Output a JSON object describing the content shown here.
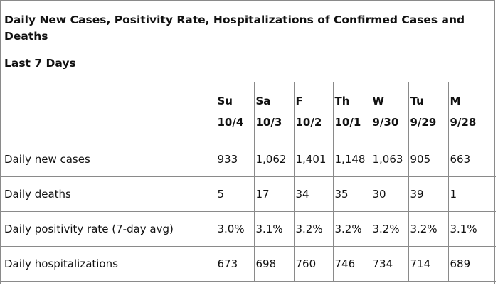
{
  "title": "Daily New Cases, Positivity Rate, Hospitalizations of Confirmed Cases and Deaths",
  "subtitle": "Last 7 Days",
  "columns": [
    {
      "day": "Su",
      "date": "10/4"
    },
    {
      "day": "Sa",
      "date": "10/3"
    },
    {
      "day": "F",
      "date": "10/2"
    },
    {
      "day": "Th",
      "date": "10/1"
    },
    {
      "day": "W",
      "date": "9/30"
    },
    {
      "day": "Tu",
      "date": "9/29"
    },
    {
      "day": "M",
      "date": "9/28"
    }
  ],
  "rows": [
    {
      "label": "Daily new cases",
      "values": [
        "933",
        "1,062",
        "1,401",
        "1,148",
        "1,063",
        "905",
        "663"
      ]
    },
    {
      "label": "Daily deaths",
      "values": [
        "5",
        "17",
        "34",
        "35",
        "30",
        "39",
        "1"
      ]
    },
    {
      "label": "Daily positivity rate (7-day avg)",
      "values": [
        "3.0%",
        "3.1%",
        "3.2%",
        "3.2%",
        "3.2%",
        "3.2%",
        "3.1%"
      ]
    },
    {
      "label": "Daily hospitalizations",
      "values": [
        "673",
        "698",
        "760",
        "746",
        "734",
        "714",
        "689"
      ]
    }
  ],
  "chart_data": {
    "type": "table",
    "title": "Daily New Cases, Positivity Rate, Hospitalizations of Confirmed Cases and Deaths",
    "subtitle": "Last 7 Days",
    "categories": [
      "Su 10/4",
      "Sa 10/3",
      "F 10/2",
      "Th 10/1",
      "W 9/30",
      "Tu 9/29",
      "M 9/28"
    ],
    "series": [
      {
        "name": "Daily new cases",
        "values": [
          933,
          1062,
          1401,
          1148,
          1063,
          905,
          663
        ]
      },
      {
        "name": "Daily deaths",
        "values": [
          5,
          17,
          34,
          35,
          30,
          39,
          1
        ]
      },
      {
        "name": "Daily positivity rate (7-day avg)",
        "values": [
          3.0,
          3.1,
          3.2,
          3.2,
          3.2,
          3.2,
          3.1
        ]
      },
      {
        "name": "Daily hospitalizations",
        "values": [
          673,
          698,
          760,
          746,
          734,
          714,
          689
        ]
      }
    ]
  }
}
